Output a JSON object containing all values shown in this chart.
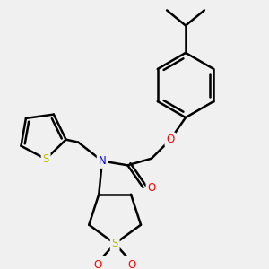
{
  "bg_color": "#f0f0f0",
  "line_color": "#000000",
  "bond_width": 1.8,
  "atom_colors": {
    "O": "#ff0000",
    "N": "#0000ee",
    "S": "#bbbb00",
    "C": "#000000"
  },
  "font_size": 8.5,
  "fig_width": 3.0,
  "fig_height": 3.0,
  "dpi": 100
}
